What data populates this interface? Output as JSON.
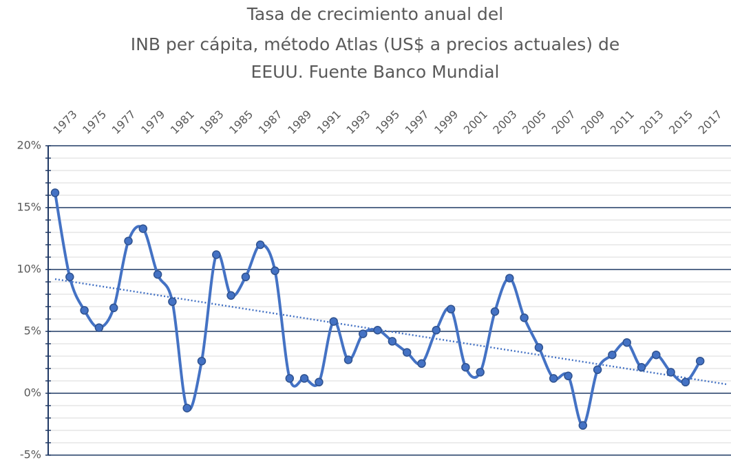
{
  "chart_data": {
    "type": "line",
    "title": [
      "Tasa de crecimiento anual del",
      "INB per cápita, método Atlas (US$ a precios actuales) de",
      "EEUU. Fuente Banco Mundial"
    ],
    "categories": [
      "1973",
      null,
      "1975",
      null,
      "1977",
      null,
      "1979",
      null,
      "1981",
      null,
      "1983",
      null,
      "1985",
      null,
      "1987",
      null,
      "1989",
      null,
      "1991",
      null,
      "1993",
      null,
      "1995",
      null,
      "1997",
      null,
      "1999",
      null,
      "2001",
      null,
      "2003",
      null,
      "2005",
      null,
      "2007",
      null,
      "2009",
      null,
      "2011",
      null,
      "2013",
      null,
      "2015",
      null,
      "2017"
    ],
    "values": [
      16.2,
      9.4,
      6.7,
      5.3,
      6.9,
      12.3,
      13.3,
      9.6,
      7.4,
      -1.2,
      2.6,
      11.2,
      7.9,
      9.4,
      12.0,
      9.9,
      1.2,
      1.2,
      0.9,
      5.8,
      2.7,
      4.8,
      5.1,
      4.2,
      3.3,
      2.4,
      5.1,
      6.8,
      2.1,
      1.7,
      6.6,
      9.3,
      6.1,
      3.7,
      1.2,
      1.4,
      -2.6,
      1.9,
      3.1,
      4.1,
      2.1,
      3.1,
      1.7,
      0.9,
      2.6
    ],
    "color": "#4472c4",
    "marker_edge_color": "#2f528f",
    "smooth": true,
    "trendline": true,
    "ylim": [
      -5,
      20
    ],
    "yticks": [
      {
        "value": -5,
        "label": "-5%"
      },
      {
        "value": 0,
        "label": "0%"
      },
      {
        "value": 5,
        "label": "5%"
      },
      {
        "value": 10,
        "label": "10%"
      },
      {
        "value": 15,
        "label": "15%"
      },
      {
        "value": 20,
        "label": "20%"
      }
    ],
    "grid": true,
    "grid_color": "#1f3864",
    "minor_grid": true,
    "x_labels_position": "top"
  }
}
